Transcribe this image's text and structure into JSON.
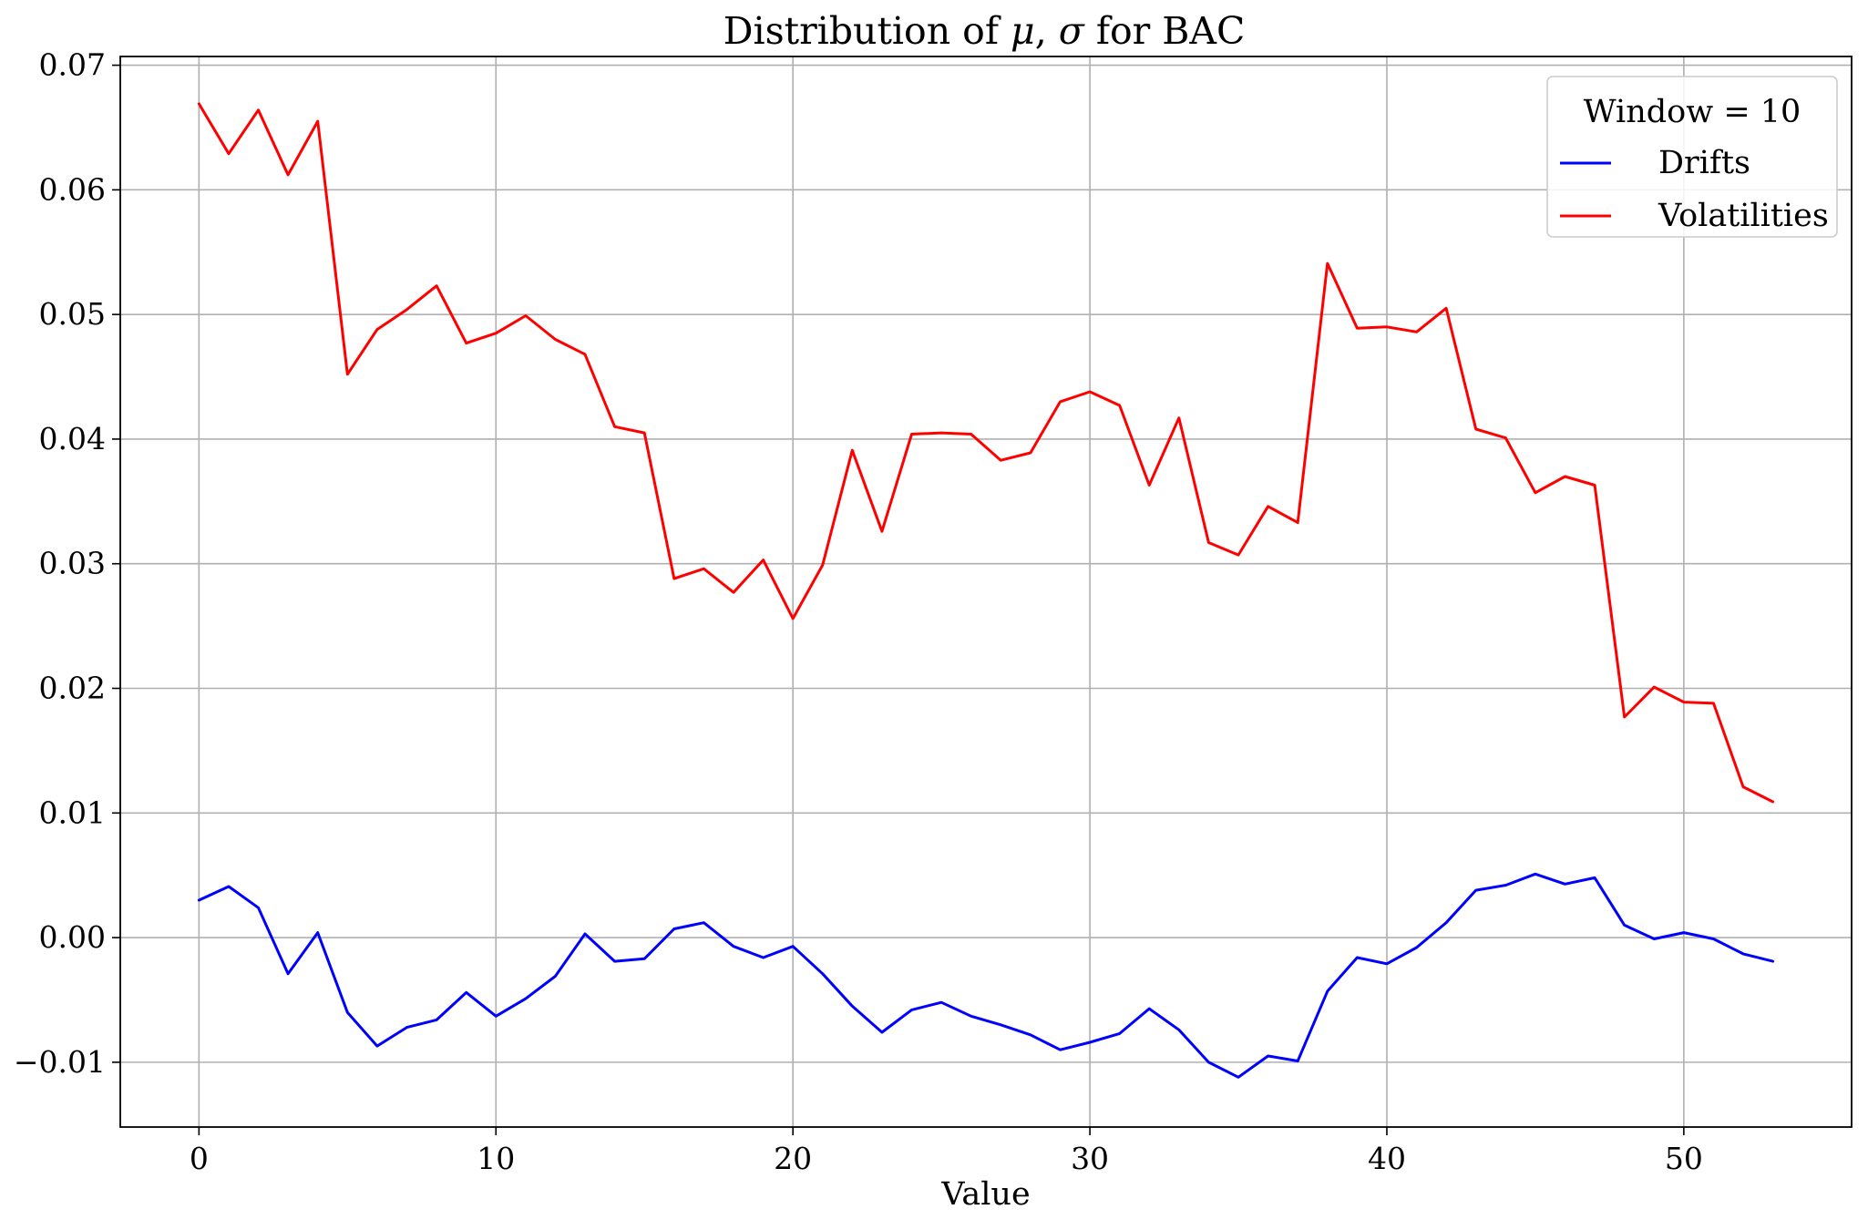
{
  "chart_data": {
    "type": "line",
    "title": "Distribution of μ, σ for BAC",
    "title_parts": {
      "before": "Distribution of ",
      "mu": "μ",
      "comma": ", ",
      "sigma": "σ",
      "after": " for BAC"
    },
    "xlabel": "Value",
    "ylabel": "",
    "xlim": [
      -2.65,
      55.65
    ],
    "ylim": [
      -0.0152,
      0.0707
    ],
    "xticks": [
      0,
      10,
      20,
      30,
      40,
      50
    ],
    "xtick_labels": [
      "0",
      "10",
      "20",
      "30",
      "40",
      "50"
    ],
    "yticks": [
      -0.01,
      0.0,
      0.01,
      0.02,
      0.03,
      0.04,
      0.05,
      0.06,
      0.07
    ],
    "ytick_labels": [
      "−0.01",
      "0.00",
      "0.01",
      "0.02",
      "0.03",
      "0.04",
      "0.05",
      "0.06",
      "0.07"
    ],
    "grid": true,
    "legend": {
      "title": "Window = 10",
      "position": "top-right"
    },
    "x": [
      0,
      1,
      2,
      3,
      4,
      5,
      6,
      7,
      8,
      9,
      10,
      11,
      12,
      13,
      14,
      15,
      16,
      17,
      18,
      19,
      20,
      21,
      22,
      23,
      24,
      25,
      26,
      27,
      28,
      29,
      30,
      31,
      32,
      33,
      34,
      35,
      36,
      37,
      38,
      39,
      40,
      41,
      42,
      43,
      44,
      45,
      46,
      47,
      48,
      49,
      50,
      51,
      52,
      53
    ],
    "series": [
      {
        "name": "Drifts",
        "color": "#0000ff",
        "values": [
          0.003,
          0.0041,
          0.0024,
          -0.0029,
          0.0004,
          -0.006,
          -0.0087,
          -0.0072,
          -0.0066,
          -0.0044,
          -0.0063,
          -0.0049,
          -0.0031,
          0.0003,
          -0.0019,
          -0.0017,
          0.0007,
          0.0012,
          -0.0007,
          -0.0016,
          -0.0007,
          -0.0029,
          -0.0055,
          -0.0076,
          -0.0058,
          -0.0052,
          -0.0063,
          -0.007,
          -0.0078,
          -0.009,
          -0.0084,
          -0.0077,
          -0.0057,
          -0.0074,
          -0.01,
          -0.0112,
          -0.0095,
          -0.0099,
          -0.0043,
          -0.0016,
          -0.0021,
          -0.0008,
          0.0012,
          0.0038,
          0.0042,
          0.0051,
          0.0043,
          0.0048,
          0.001,
          -0.0001,
          0.0004,
          -0.0001,
          -0.0013,
          -0.0019
        ]
      },
      {
        "name": "Volatilities",
        "color": "#ff0000",
        "values": [
          0.0669,
          0.0629,
          0.0664,
          0.0612,
          0.0655,
          0.0452,
          0.0488,
          0.0504,
          0.0523,
          0.0477,
          0.0485,
          0.0499,
          0.048,
          0.0468,
          0.041,
          0.0405,
          0.0288,
          0.0296,
          0.0277,
          0.0303,
          0.0256,
          0.0299,
          0.0391,
          0.0326,
          0.0404,
          0.0405,
          0.0404,
          0.0383,
          0.0389,
          0.043,
          0.0438,
          0.0427,
          0.0363,
          0.0417,
          0.0317,
          0.0307,
          0.0346,
          0.0333,
          0.0541,
          0.0489,
          0.049,
          0.0486,
          0.0505,
          0.0408,
          0.0401,
          0.0357,
          0.037,
          0.0363,
          0.0177,
          0.0201,
          0.0189,
          0.0188,
          0.0121,
          0.0109
        ]
      }
    ]
  }
}
